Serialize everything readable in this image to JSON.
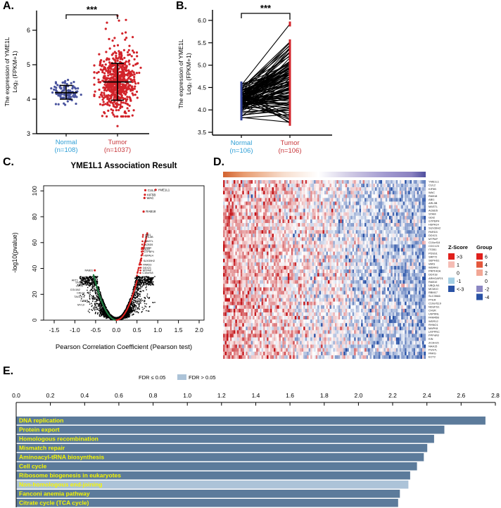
{
  "figure_bg": "#ffffff",
  "colors": {
    "normal_dot": "#4A549E",
    "tumor_dot": "#D2232A",
    "normal_label": "#2E9FD6",
    "tumor_label": "#C8373B",
    "volcano_point": "#000000",
    "volcano_pos_curve": "#E3211F",
    "volcano_neg_curve": "#1F7A3F",
    "volcano_sig_dot": "#D61F1F",
    "bar_dark": "#5C7B9B",
    "bar_light": "#ACC3D8",
    "bar_label": "#F7F700",
    "heat_red": "#C21318",
    "heat_blue": "#254FA6"
  },
  "chart_data": [
    {
      "panel": "A.",
      "type": "scatter",
      "ylabel_lines": [
        "The expression of YME1L",
        "Log₂ (FPKM+1)"
      ],
      "y_ticks": [
        3,
        4,
        5,
        6
      ],
      "ylim": [
        3,
        6.6
      ],
      "significance": "***",
      "groups": [
        {
          "name": "Normal",
          "n_label": "(n=108)",
          "n": 108,
          "mean": 4.19,
          "sd": 0.14,
          "range": [
            3.82,
            4.58
          ],
          "err": [
            4.0,
            4.19,
            4.4
          ]
        },
        {
          "name": "Tumor",
          "n_label": "(n=1037)",
          "n": 1037,
          "mean": 4.5,
          "sd": 0.42,
          "range": [
            3.22,
            6.42
          ],
          "err": [
            3.97,
            4.5,
            5.04
          ]
        }
      ]
    },
    {
      "panel": "B.",
      "type": "paired-line",
      "ylabel_lines": [
        "The expression of YME1L",
        "Log₂ (FPKM+1)"
      ],
      "y_ticks": [
        3.5,
        4.0,
        4.5,
        5.0,
        5.5,
        6.0
      ],
      "ylim": [
        3.5,
        6.3
      ],
      "significance": "***",
      "n_pairs": 106,
      "groups": [
        {
          "name": "Normal",
          "n_label": "(n=106)",
          "n": 106,
          "range": [
            3.78,
            4.58
          ]
        },
        {
          "name": "Tumor",
          "n_label": "(n=106)",
          "n": 106,
          "range": [
            3.7,
            5.92
          ]
        }
      ]
    },
    {
      "panel": "C.",
      "type": "scatter-volcano",
      "title": "YME1L1 Association Result",
      "xlabel": "Pearson Correlation Coefficient (Pearson test)",
      "ylabel": "-log10(pvalue)",
      "x_ticks": [
        -1.5,
        -1.0,
        -0.5,
        0.0,
        0.5,
        1.0,
        1.5,
        2.0
      ],
      "y_ticks": [
        0,
        20,
        40,
        60,
        80,
        100
      ],
      "xlim": [
        -1.75,
        2.12
      ],
      "ylim": [
        0,
        104
      ],
      "top_genes": [
        {
          "gene": "CUL2",
          "x": 0.7,
          "y": 100.5
        },
        {
          "gene": "YME1L1",
          "x": 0.95,
          "y": 100.8
        },
        {
          "gene": "KIF5B",
          "x": 0.69,
          "y": 97
        },
        {
          "gene": "WAC",
          "x": 0.68,
          "y": 94.5
        },
        {
          "gene": "RAB18",
          "x": 0.66,
          "y": 84
        }
      ],
      "mid_genes": [
        {
          "gene": "ABI1",
          "x": 0.645,
          "y": 66
        },
        {
          "gene": "ARL5B",
          "x": 0.64,
          "y": 64.5
        },
        {
          "gene": "MASTL",
          "x": 0.632,
          "y": 61
        },
        {
          "gene": "ACBD5",
          "x": 0.625,
          "y": 58.5
        },
        {
          "gene": "STAM",
          "x": 0.62,
          "y": 56
        },
        {
          "gene": "GDI2",
          "x": 0.616,
          "y": 55
        },
        {
          "gene": "GTPBP4",
          "x": 0.612,
          "y": 53
        },
        {
          "gene": "HSPA14",
          "x": 0.606,
          "y": 50
        },
        {
          "gene": "SUV39H2",
          "x": 0.6,
          "y": 46
        },
        {
          "gene": "PARD3",
          "x": 0.594,
          "y": 43
        },
        {
          "gene": "DDX21",
          "x": 0.59,
          "y": 40.5
        },
        {
          "gene": "MTPAP",
          "x": 0.585,
          "y": 38.5
        },
        {
          "gene": "C10orf18",
          "x": 0.58,
          "y": 36.5
        }
      ],
      "left_genes": [
        {
          "gene": "RAB31",
          "x": -0.52,
          "y": 38.5
        },
        {
          "gene": "AKT1",
          "x": -0.88,
          "y": 31
        },
        {
          "gene": "TRIO",
          "x": -0.8,
          "y": 29
        },
        {
          "gene": "LMO3",
          "x": -0.76,
          "y": 26.5
        },
        {
          "gene": "COL5A2",
          "x": -0.83,
          "y": 23.5
        },
        {
          "gene": "CALD1",
          "x": -0.71,
          "y": 21
        },
        {
          "gene": "TAGLN",
          "x": -0.77,
          "y": 18
        },
        {
          "gene": "LUM",
          "x": -0.69,
          "y": 15
        },
        {
          "gene": "MYL9",
          "x": -0.73,
          "y": 12
        }
      ]
    },
    {
      "panel": "D.",
      "type": "heatmap",
      "rows": 50,
      "cols_drawn": 116,
      "genes": [
        "YME1L1",
        "CUL2",
        "KIF5B",
        "WAC",
        "RAB18",
        "ABI1",
        "ARL5B",
        "MASTL",
        "ACBD5",
        "STAM",
        "GDI2",
        "GTPBP4",
        "HSPA14",
        "SUV39H2",
        "PARD3",
        "DDX21",
        "MTPAP",
        "C10orf18",
        "CDC123",
        "ITGB1",
        "PDSS1",
        "SRP72",
        "SEPHS1",
        "IARS",
        "WDR43",
        "PRPF40A",
        "DDX18",
        "ARHGAP21",
        "RAB10",
        "UBQLN1",
        "MCM10",
        "RBM17",
        "SLC35A6",
        "PTER",
        "C10orf119",
        "NDUFS1",
        "CHUK",
        "USP6NL",
        "FAM45B",
        "WDR12",
        "RHNO1",
        "MAPK8",
        "LRPPRC",
        "PPP4R2",
        "KIN",
        "ZC3H15",
        "NAA15",
        "PUS7L",
        "PARG",
        "ECT2"
      ],
      "annotation_gradient": [
        "#D2622F",
        "#E89B6E",
        "#F7DECE",
        "#FFFFFF",
        "#CFC9E4",
        "#A29AD0",
        "#8A81C0",
        "#4F4F9E"
      ],
      "zscore_legend": {
        "title": "Z-Score",
        "entries": [
          {
            "label": ">3",
            "color": "#E0201C"
          },
          {
            "label": "1",
            "color": "#F5BCB4"
          },
          {
            "label": "0",
            "color": "#FFFFFF"
          },
          {
            "label": "-1",
            "color": "#A3CFE4"
          },
          {
            "label": "<-3",
            "color": "#2A52A5"
          }
        ]
      },
      "group_legend": {
        "title": "Group",
        "entries": [
          {
            "label": "6",
            "color": "#E0201C"
          },
          {
            "label": "4",
            "color": "#E4573C"
          },
          {
            "label": "2",
            "color": "#F2A795"
          },
          {
            "label": "0",
            "color": "#FFFFFF"
          },
          {
            "label": "-2",
            "color": "#8B87C3"
          },
          {
            "label": "-4",
            "color": "#2A52A5"
          }
        ]
      }
    },
    {
      "panel": "E.",
      "type": "bar",
      "orientation": "horizontal",
      "legend": [
        {
          "label": "FDR ≤ 0.05",
          "color": null
        },
        {
          "label": "FDR > 0.05",
          "color": "#ACC3D8"
        }
      ],
      "x_ticks": [
        0.0,
        0.2,
        0.4,
        0.6,
        0.8,
        1.0,
        1.2,
        1.4,
        1.6,
        1.8,
        2.0,
        2.2,
        2.4,
        2.6,
        2.8
      ],
      "xlim": [
        0,
        2.8
      ],
      "categories": [
        "DNA replication",
        "Protein export",
        "Homologous recombination",
        "Mismatch repair",
        "Aminoacyl-tRNA biosynthesis",
        "Cell cycle",
        "Ribosome biogenesis in eukaryotes",
        "Non-homologous end-joining",
        "Fanconi anemia pathway",
        "Citrate cycle (TCA cycle)"
      ],
      "values": [
        2.74,
        2.5,
        2.44,
        2.4,
        2.38,
        2.34,
        2.3,
        2.29,
        2.24,
        2.23
      ],
      "fdr_significant": [
        true,
        true,
        true,
        true,
        true,
        true,
        true,
        false,
        true,
        true
      ]
    }
  ]
}
